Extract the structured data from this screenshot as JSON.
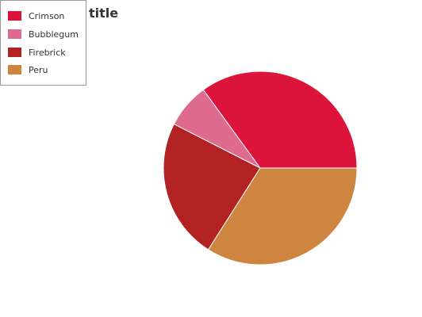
{
  "chart_data": {
    "type": "pie",
    "title": "title",
    "categories": [
      "Crimson",
      "Bubblegum",
      "Firebrick",
      "Peru"
    ],
    "values": [
      35,
      7.5,
      23.5,
      34
    ],
    "colors": [
      "#dc143c",
      "#de6b8f",
      "#b22222",
      "#cd853f"
    ],
    "legend": {
      "position": "top-left",
      "entries": [
        {
          "label": "Crimson",
          "color": "#dc143c"
        },
        {
          "label": "Bubblegum",
          "color": "#de6b8f"
        },
        {
          "label": "Firebrick",
          "color": "#b22222"
        },
        {
          "label": "Peru",
          "color": "#cd853f"
        }
      ]
    }
  }
}
